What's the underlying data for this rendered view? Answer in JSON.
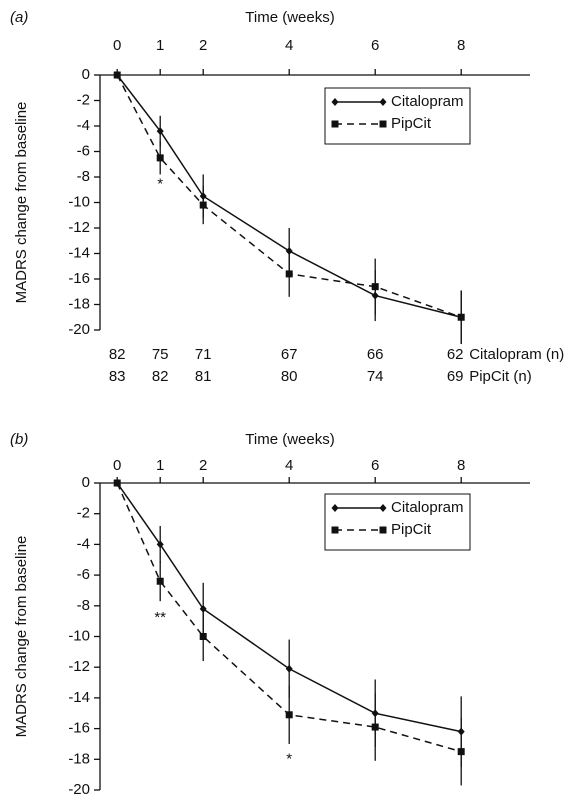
{
  "chart_data": [
    {
      "type": "line",
      "panel_label": "(a)",
      "xlabel": "Time (weeks)",
      "ylabel": "MADRS change from baseline",
      "x": [
        0,
        1,
        2,
        4,
        6,
        8
      ],
      "xlim": [
        -0.4,
        9.6
      ],
      "xticks": [
        0,
        1,
        2,
        4,
        6,
        8
      ],
      "ylim": [
        -20,
        0
      ],
      "yticks": [
        0,
        -2,
        -4,
        -6,
        -8,
        -10,
        -12,
        -14,
        -16,
        -18,
        -20
      ],
      "legend": "upper right",
      "series": [
        {
          "name": "Citalopram",
          "color": "#111111",
          "linestyle": "solid",
          "marker": "diamond",
          "values": [
            0,
            -4.4,
            -9.5,
            -13.8,
            -17.3,
            -19.0
          ],
          "errors": [
            0,
            1.2,
            1.7,
            1.8,
            2.0,
            2.1
          ]
        },
        {
          "name": "PipCit",
          "color": "#111111",
          "linestyle": "dashed",
          "marker": "square",
          "values": [
            0,
            -6.5,
            -10.2,
            -15.6,
            -16.6,
            -19.0
          ],
          "errors": [
            0,
            1.3,
            1.5,
            1.8,
            2.2,
            2.1
          ]
        }
      ],
      "annotations": [
        "*"
      ],
      "n_table": [
        {
          "label": "Citalopram (n)",
          "values": [
            82,
            75,
            71,
            67,
            66,
            62
          ]
        },
        {
          "label": "PipCit (n)",
          "values": [
            83,
            82,
            81,
            80,
            74,
            69
          ]
        }
      ]
    },
    {
      "type": "line",
      "panel_label": "(b)",
      "xlabel": "Time (weeks)",
      "ylabel": "MADRS change from baseline",
      "x": [
        0,
        1,
        2,
        4,
        6,
        8
      ],
      "xlim": [
        -0.4,
        9.6
      ],
      "xticks": [
        0,
        1,
        2,
        4,
        6,
        8
      ],
      "ylim": [
        -20,
        0
      ],
      "yticks": [
        0,
        -2,
        -4,
        -6,
        -8,
        -10,
        -12,
        -14,
        -16,
        -18,
        -20
      ],
      "legend": "upper right",
      "series": [
        {
          "name": "Citalopram",
          "color": "#111111",
          "linestyle": "solid",
          "marker": "diamond",
          "values": [
            0,
            -4.0,
            -8.2,
            -12.1,
            -15.0,
            -16.2
          ],
          "errors": [
            0,
            1.2,
            1.7,
            1.9,
            2.2,
            2.3
          ]
        },
        {
          "name": "PipCit",
          "color": "#111111",
          "linestyle": "dashed",
          "marker": "square",
          "values": [
            0,
            -6.4,
            -10.0,
            -15.1,
            -15.9,
            -17.5
          ],
          "errors": [
            0,
            1.3,
            1.6,
            1.9,
            2.2,
            2.2
          ]
        }
      ],
      "annotations": [
        "**",
        "*"
      ]
    }
  ]
}
